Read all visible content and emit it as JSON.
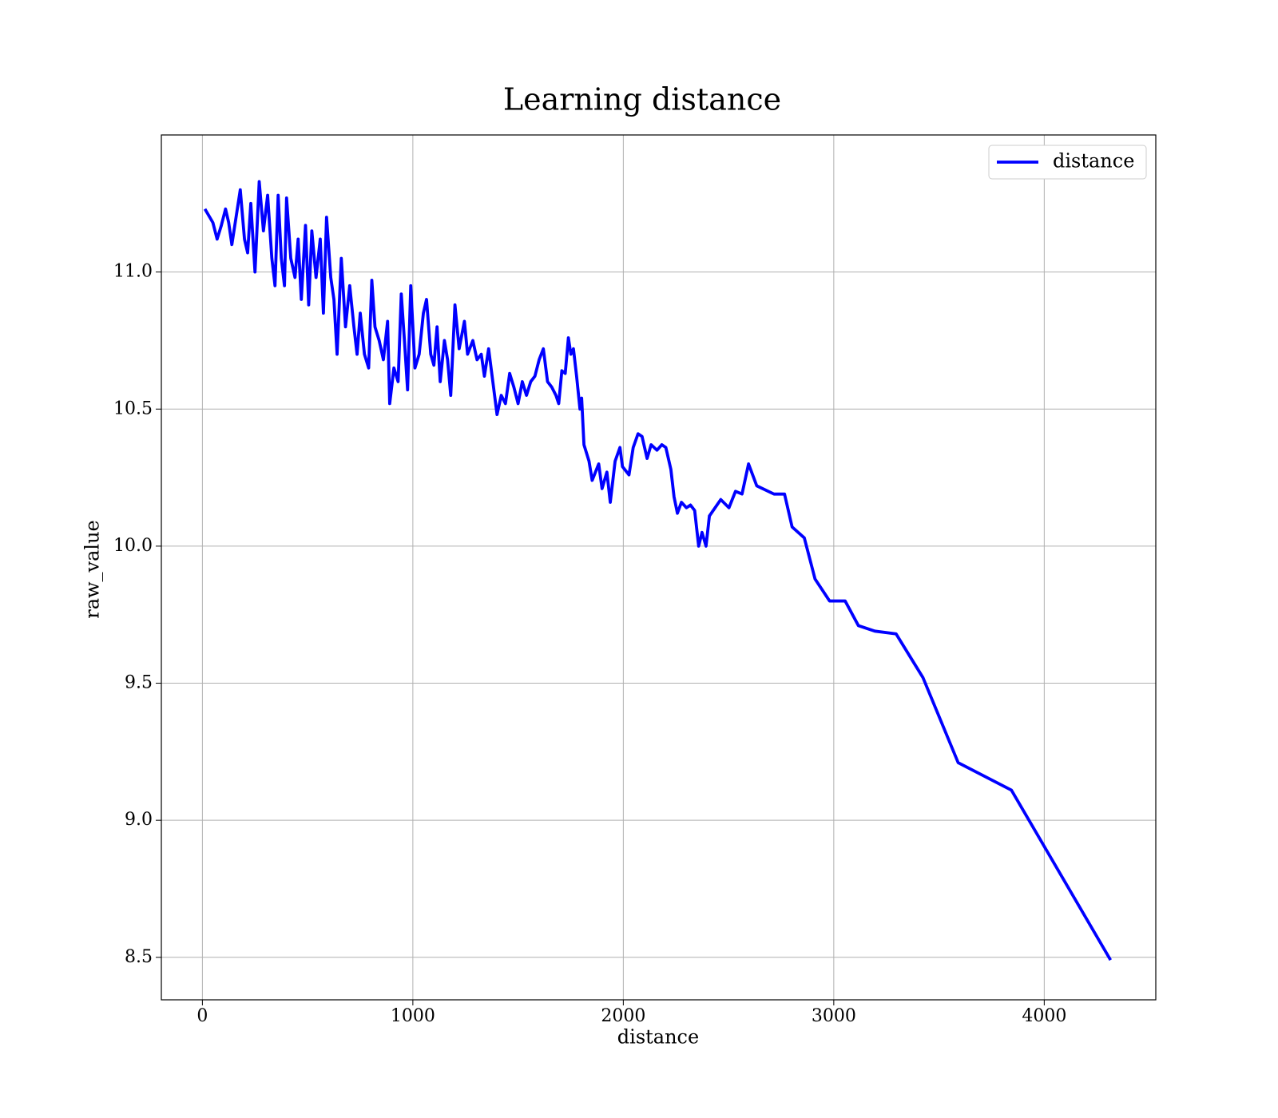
{
  "chart_data": {
    "type": "line",
    "title": "Learning distance",
    "x_label": "distance",
    "y_label": "raw_value",
    "xlim": [
      -195,
      4530
    ],
    "ylim": [
      8.345,
      11.5
    ],
    "xticks": [
      0,
      1000,
      2000,
      3000,
      4000
    ],
    "yticks": [
      {
        "value": 8.5,
        "label": "8.5"
      },
      {
        "value": 9.0,
        "label": "9.0"
      },
      {
        "value": 9.5,
        "label": "9.5"
      },
      {
        "value": 10.0,
        "label": "10.0"
      },
      {
        "value": 10.5,
        "label": "10.5"
      },
      {
        "value": 11.0,
        "label": "11.0"
      }
    ],
    "grid": true,
    "legend": "upper right",
    "series": [
      {
        "name": "distance",
        "color": "#0000ff",
        "x": [
          12,
          50,
          70,
          90,
          110,
          125,
          140,
          160,
          180,
          200,
          215,
          230,
          250,
          270,
          290,
          310,
          330,
          345,
          360,
          375,
          390,
          400,
          420,
          440,
          455,
          470,
          490,
          505,
          520,
          540,
          560,
          575,
          590,
          610,
          625,
          640,
          660,
          680,
          700,
          720,
          735,
          750,
          770,
          790,
          805,
          820,
          840,
          860,
          880,
          890,
          910,
          930,
          945,
          960,
          975,
          990,
          1010,
          1030,
          1050,
          1065,
          1085,
          1100,
          1115,
          1130,
          1150,
          1165,
          1180,
          1200,
          1220,
          1245,
          1260,
          1285,
          1305,
          1325,
          1340,
          1360,
          1380,
          1400,
          1420,
          1440,
          1460,
          1480,
          1500,
          1520,
          1540,
          1560,
          1580,
          1600,
          1620,
          1640,
          1660,
          1680,
          1693,
          1708,
          1724,
          1739,
          1751,
          1763,
          1778,
          1794,
          1802,
          1813,
          1837,
          1852,
          1883,
          1899,
          1922,
          1938,
          1961,
          1984,
          1996,
          2027,
          2047,
          2070,
          2089,
          2113,
          2132,
          2160,
          2183,
          2202,
          2226,
          2241,
          2257,
          2276,
          2300,
          2319,
          2339,
          2358,
          2374,
          2393,
          2409,
          2463,
          2502,
          2533,
          2564,
          2595,
          2634,
          2716,
          2766,
          2802,
          2860,
          2911,
          2980,
          3054,
          3117,
          3195,
          3296,
          3424,
          3591,
          3844,
          4315
        ],
        "values": [
          11.23,
          11.18,
          11.12,
          11.17,
          11.23,
          11.18,
          11.1,
          11.2,
          11.3,
          11.12,
          11.07,
          11.25,
          11.0,
          11.33,
          11.15,
          11.28,
          11.05,
          10.95,
          11.28,
          11.05,
          10.95,
          11.27,
          11.05,
          10.98,
          11.12,
          10.9,
          11.17,
          10.88,
          11.15,
          10.98,
          11.12,
          10.85,
          11.2,
          10.98,
          10.9,
          10.7,
          11.05,
          10.8,
          10.95,
          10.8,
          10.7,
          10.85,
          10.7,
          10.65,
          10.97,
          10.8,
          10.75,
          10.68,
          10.82,
          10.52,
          10.65,
          10.6,
          10.92,
          10.75,
          10.57,
          10.95,
          10.65,
          10.7,
          10.85,
          10.9,
          10.7,
          10.66,
          10.8,
          10.6,
          10.75,
          10.68,
          10.55,
          10.88,
          10.72,
          10.82,
          10.7,
          10.75,
          10.68,
          10.7,
          10.62,
          10.72,
          10.6,
          10.48,
          10.55,
          10.52,
          10.63,
          10.58,
          10.52,
          10.6,
          10.55,
          10.6,
          10.62,
          10.68,
          10.72,
          10.6,
          10.58,
          10.55,
          10.52,
          10.64,
          10.63,
          10.76,
          10.7,
          10.72,
          10.62,
          10.5,
          10.54,
          10.37,
          10.31,
          10.24,
          10.3,
          10.21,
          10.27,
          10.16,
          10.31,
          10.36,
          10.29,
          10.26,
          10.36,
          10.41,
          10.4,
          10.32,
          10.37,
          10.35,
          10.37,
          10.36,
          10.28,
          10.18,
          10.12,
          10.16,
          10.14,
          10.15,
          10.13,
          10.0,
          10.05,
          10.0,
          10.11,
          10.17,
          10.14,
          10.2,
          10.19,
          10.3,
          10.22,
          10.19,
          10.19,
          10.07,
          10.03,
          9.88,
          9.8,
          9.8,
          9.71,
          9.69,
          9.68,
          9.52,
          9.21,
          9.11,
          8.49
        ]
      }
    ]
  }
}
